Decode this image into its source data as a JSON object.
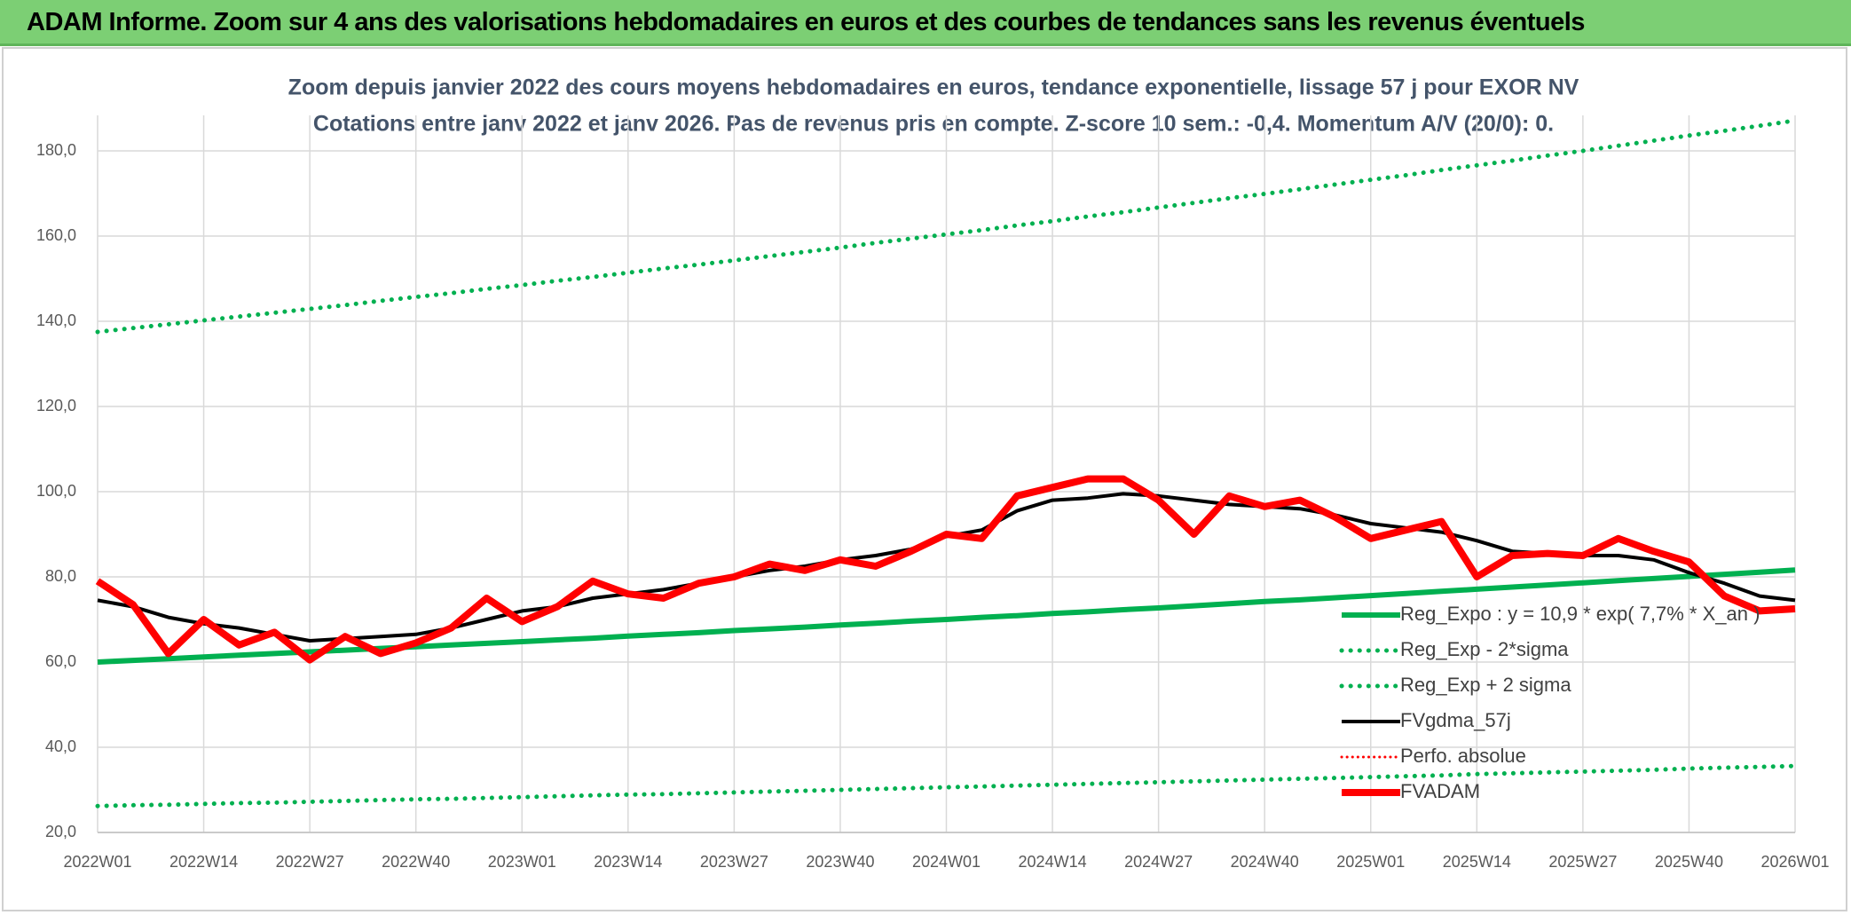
{
  "header": {
    "title": "ADAM Informe. Zoom sur 4 ans des valorisations hebdomadaires en euros et des courbes de tendances sans les revenus éventuels"
  },
  "chart_data": {
    "type": "line",
    "title": "Zoom depuis janvier 2022 des cours moyens hebdomadaires en euros, tendance exponentielle, lissage 57 j pour EXOR NV",
    "subtitle": "Cotations entre janv 2022 et janv 2026. Pas de revenus pris en compte. Z-score 10 sem.: -0,4. Momentum A/V (20/0): 0.",
    "categories": [
      "2022W01",
      null,
      null,
      "2022W14",
      null,
      null,
      "2022W27",
      null,
      null,
      "2022W40",
      null,
      null,
      "2023W01",
      null,
      null,
      "2023W14",
      null,
      null,
      "2023W27",
      null,
      null,
      "2023W40",
      null,
      null,
      "2024W01",
      null,
      null,
      "2024W14",
      null,
      null,
      "2024W27",
      null,
      null,
      "2024W40",
      null,
      null,
      "2025W01",
      null,
      null,
      "2025W14",
      null,
      null,
      "2025W27",
      null,
      null,
      "2025W40",
      null,
      null,
      "2026W01"
    ],
    "ylim": [
      20,
      180
    ],
    "yticks": [
      {
        "value": 20,
        "label": "20,0"
      },
      {
        "value": 40,
        "label": "40,0"
      },
      {
        "value": 60,
        "label": "60,0"
      },
      {
        "value": 80,
        "label": "80,0"
      },
      {
        "value": 100,
        "label": "100,0"
      },
      {
        "value": 120,
        "label": "120,0"
      },
      {
        "value": 140,
        "label": "140,0"
      },
      {
        "value": 160,
        "label": "160,0"
      },
      {
        "value": 180,
        "label": "180,0"
      }
    ],
    "grid": true,
    "series": [
      {
        "name": "Reg_Expo : y = 10,9 * exp( 7,7% *  X_an )",
        "color": "#00b050",
        "linestyle": "solid",
        "linewidth": 6,
        "values": [
          60.0,
          60.4,
          60.8,
          61.2,
          61.6,
          62.0,
          62.4,
          62.8,
          63.2,
          63.6,
          64.0,
          64.4,
          64.8,
          65.2,
          65.6,
          66.1,
          66.5,
          66.9,
          67.4,
          67.8,
          68.2,
          68.7,
          69.1,
          69.6,
          70.0,
          70.5,
          70.9,
          71.4,
          71.8,
          72.3,
          72.7,
          73.2,
          73.7,
          74.2,
          74.6,
          75.1,
          75.6,
          76.1,
          76.6,
          77.1,
          77.6,
          78.1,
          78.6,
          79.1,
          79.6,
          80.1,
          80.6,
          81.1,
          81.6
        ]
      },
      {
        "name": "Reg_Exp - 2*sigma",
        "color": "#00b050",
        "linestyle": "dotted",
        "linewidth": 5,
        "values": [
          26.2,
          26.4,
          26.5,
          26.7,
          26.9,
          27.0,
          27.2,
          27.4,
          27.6,
          27.8,
          27.9,
          28.1,
          28.3,
          28.5,
          28.7,
          28.9,
          29.0,
          29.2,
          29.4,
          29.6,
          29.8,
          30.0,
          30.2,
          30.4,
          30.6,
          30.8,
          31.0,
          31.2,
          31.4,
          31.6,
          31.8,
          32.0,
          32.2,
          32.4,
          32.6,
          32.8,
          33.0,
          33.2,
          33.4,
          33.7,
          33.9,
          34.1,
          34.3,
          34.5,
          34.7,
          35.0,
          35.2,
          35.4,
          35.6
        ]
      },
      {
        "name": "Reg_Exp + 2 sigma",
        "color": "#00b050",
        "linestyle": "dotted",
        "linewidth": 5,
        "values": [
          137.5,
          138.4,
          139.3,
          140.2,
          141.1,
          142.0,
          142.9,
          143.8,
          144.8,
          145.7,
          146.6,
          147.6,
          148.5,
          149.5,
          150.4,
          151.4,
          152.4,
          153.3,
          154.3,
          155.3,
          156.3,
          157.3,
          158.4,
          159.4,
          160.4,
          161.4,
          162.5,
          163.5,
          164.6,
          165.6,
          166.7,
          167.8,
          168.9,
          169.9,
          171.0,
          172.1,
          173.2,
          174.3,
          175.5,
          176.6,
          177.7,
          178.9,
          180.0,
          181.2,
          182.4,
          183.6,
          184.7,
          185.9,
          187.1
        ]
      },
      {
        "name": "FVgdma_57j",
        "color": "#000000",
        "linestyle": "solid",
        "linewidth": 4,
        "values": [
          74.5,
          73,
          70.5,
          69,
          68,
          66.5,
          65,
          65.5,
          66,
          66.5,
          68,
          70,
          72,
          73,
          75,
          76,
          77,
          78.5,
          80,
          81.5,
          82.5,
          84,
          85,
          86.5,
          89.5,
          91,
          95.5,
          98,
          98.5,
          99.5,
          99,
          98,
          97,
          96.5,
          96,
          94.5,
          92.5,
          91.5,
          90.5,
          88.5,
          86,
          85.5,
          85,
          85,
          84,
          81,
          78.5,
          75.5,
          74.5
        ]
      },
      {
        "name": "Perfo. absolue",
        "color": "#ff0000",
        "linestyle": "dotted",
        "linewidth": 3,
        "values": [
          null,
          null,
          null,
          null,
          null,
          null,
          null,
          null,
          null,
          null,
          null,
          null,
          null,
          null,
          null,
          null,
          null,
          null,
          null,
          null,
          null,
          null,
          null,
          null,
          null,
          null,
          null,
          null,
          null,
          null,
          null,
          null,
          null,
          null,
          null,
          null,
          null,
          null,
          null,
          null,
          null,
          null,
          null,
          null,
          null,
          null,
          null,
          null,
          null
        ]
      },
      {
        "name": "FVADAM",
        "color": "#ff0000",
        "linestyle": "solid",
        "linewidth": 8,
        "values": [
          79,
          73.5,
          62,
          70,
          64,
          67,
          60.5,
          66,
          62,
          64.5,
          68,
          75,
          69.5,
          73,
          79,
          76,
          75,
          78.5,
          80,
          83,
          81.5,
          84,
          82.5,
          86,
          90,
          89,
          99,
          101,
          103,
          103,
          98,
          90,
          99,
          96.5,
          98,
          94,
          89,
          91,
          93,
          80,
          85,
          85.5,
          85,
          89,
          86,
          83.5,
          75.5,
          72,
          72.5
        ]
      }
    ]
  }
}
